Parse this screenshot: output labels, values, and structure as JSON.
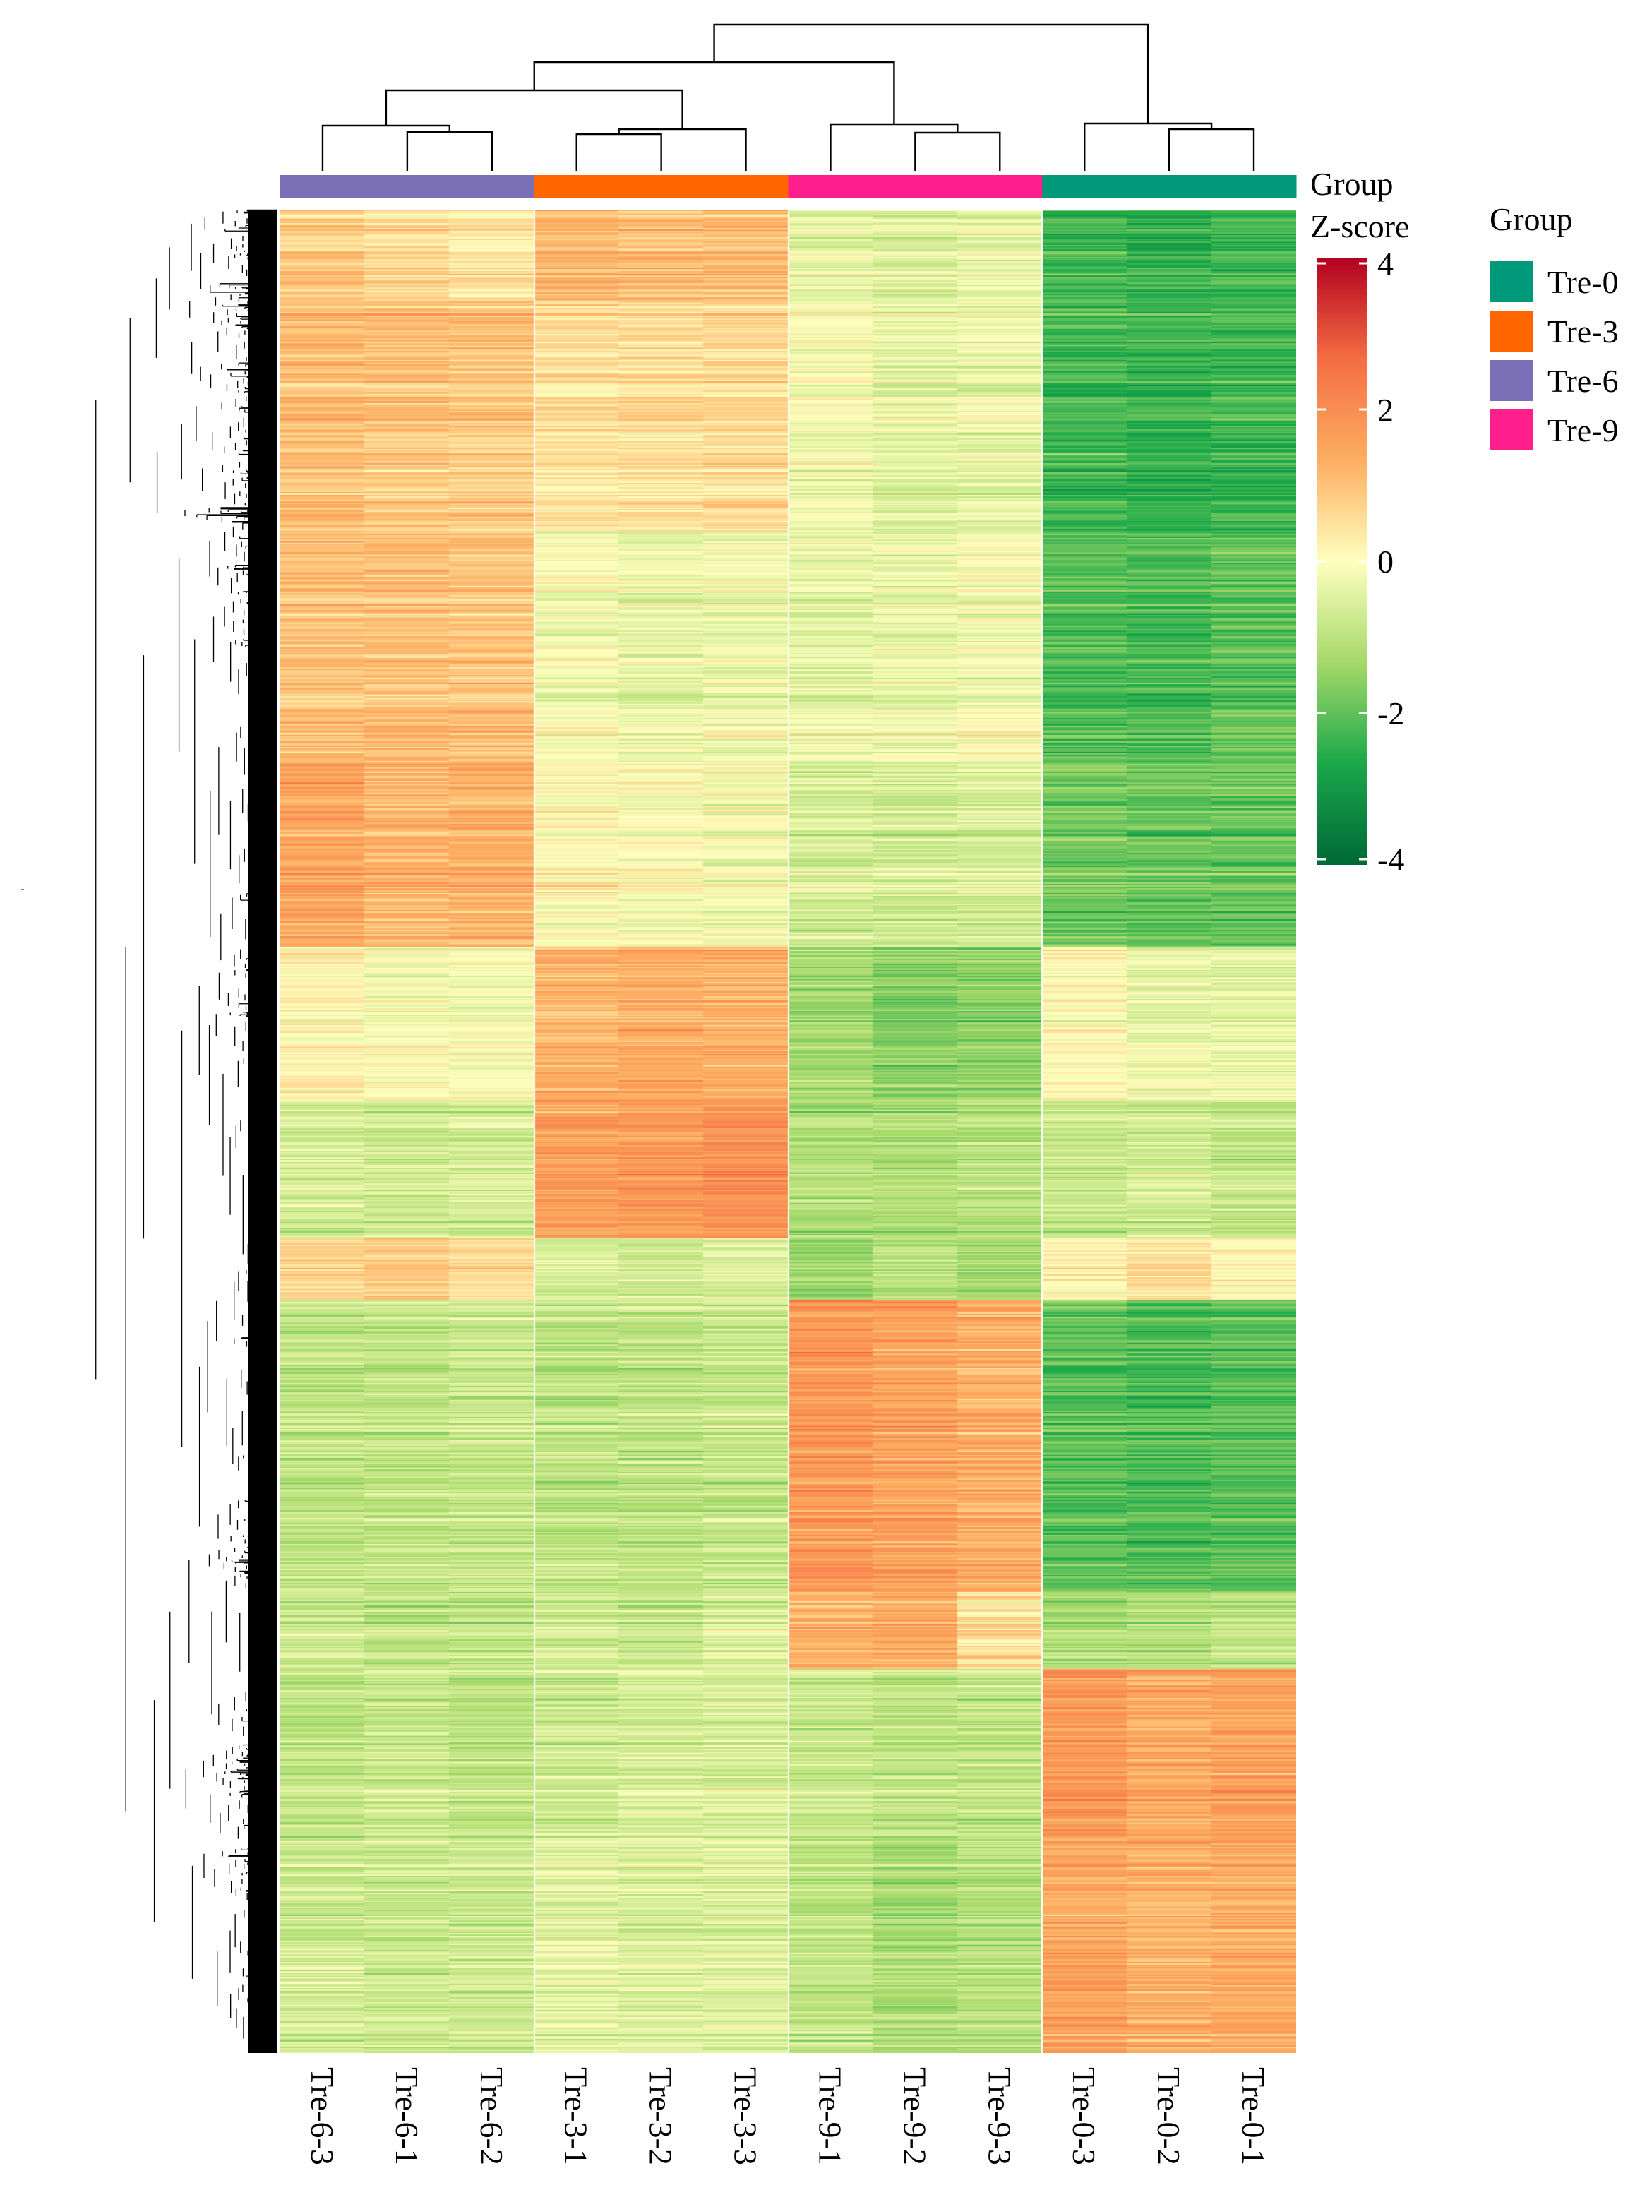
{
  "chart_data": {
    "type": "heatmap",
    "title": "",
    "columns": [
      "Tre-6-3",
      "Tre-6-1",
      "Tre-6-2",
      "Tre-3-1",
      "Tre-3-2",
      "Tre-3-3",
      "Tre-9-1",
      "Tre-9-2",
      "Tre-9-3",
      "Tre-0-3",
      "Tre-0-2",
      "Tre-0-1"
    ],
    "column_groups": [
      "Tre-6",
      "Tre-6",
      "Tre-6",
      "Tre-3",
      "Tre-3",
      "Tre-3",
      "Tre-9",
      "Tre-9",
      "Tre-9",
      "Tre-0",
      "Tre-0",
      "Tre-0"
    ],
    "group_annotation_label": "Group",
    "colorbar": {
      "title": "Z-score",
      "range": [
        -4,
        4
      ],
      "ticks": [
        4,
        2,
        0,
        -2,
        -4
      ],
      "colors": [
        "#006837",
        "#1aa84a",
        "#a6d96a",
        "#ffffbf",
        "#fdae61",
        "#f46d43",
        "#b2001f"
      ]
    },
    "legend": {
      "title": "Group",
      "entries": [
        {
          "label": "Tre-0",
          "color": "#00997a"
        },
        {
          "label": "Tre-3",
          "color": "#ff6600"
        },
        {
          "label": "Tre-6",
          "color": "#7b70b8"
        },
        {
          "label": "Tre-9",
          "color": "#ff1f8c"
        }
      ]
    },
    "row_blocks": [
      {
        "rows": 60,
        "values": [
          1.0,
          0.7,
          0.5,
          1.3,
          1.2,
          1.2,
          -0.2,
          -0.4,
          -0.2,
          -2.2,
          -2.4,
          -2.2
        ]
      },
      {
        "rows": 150,
        "values": [
          1.1,
          1.0,
          0.9,
          0.5,
          0.5,
          0.6,
          -0.1,
          -0.4,
          -0.3,
          -2.3,
          -2.4,
          -2.3
        ]
      },
      {
        "rows": 150,
        "values": [
          1.0,
          1.1,
          1.0,
          -0.1,
          -0.3,
          -0.2,
          -0.3,
          -0.3,
          -0.1,
          -2.1,
          -2.2,
          -2.0
        ]
      },
      {
        "rows": 120,
        "values": [
          1.5,
          1.2,
          1.3,
          0.1,
          0.0,
          -0.1,
          -0.6,
          -0.7,
          -0.6,
          -1.8,
          -1.9,
          -1.9
        ]
      },
      {
        "rows": 100,
        "values": [
          0.2,
          -0.1,
          -0.1,
          1.2,
          1.4,
          1.3,
          -1.3,
          -1.6,
          -1.5,
          0.1,
          -0.3,
          -0.4
        ]
      },
      {
        "rows": 90,
        "values": [
          -0.6,
          -0.7,
          -0.6,
          1.6,
          1.7,
          1.9,
          -1.1,
          -1.2,
          -1.0,
          -0.8,
          -0.7,
          -0.9
        ]
      },
      {
        "rows": 40,
        "values": [
          0.8,
          0.9,
          0.7,
          -0.5,
          -0.6,
          -0.4,
          -1.3,
          -1.0,
          -1.2,
          0.3,
          0.6,
          0.2
        ]
      },
      {
        "rows": 190,
        "values": [
          -0.9,
          -0.9,
          -0.8,
          -0.9,
          -0.9,
          -0.8,
          1.8,
          1.6,
          1.4,
          -2.0,
          -2.1,
          -2.0
        ]
      },
      {
        "rows": 50,
        "values": [
          -0.8,
          -0.9,
          -0.9,
          -0.7,
          -0.8,
          -0.6,
          1.3,
          1.4,
          0.5,
          -1.2,
          -1.1,
          -0.9
        ]
      },
      {
        "rows": 110,
        "values": [
          -0.9,
          -0.8,
          -0.9,
          -0.7,
          -0.6,
          -0.6,
          -0.8,
          -0.9,
          -0.9,
          1.8,
          1.4,
          1.6
        ]
      },
      {
        "rows": 140,
        "values": [
          -0.7,
          -0.8,
          -0.7,
          -0.4,
          -0.5,
          -0.5,
          -0.9,
          -1.2,
          -1.1,
          1.5,
          1.3,
          1.4
        ]
      }
    ]
  }
}
